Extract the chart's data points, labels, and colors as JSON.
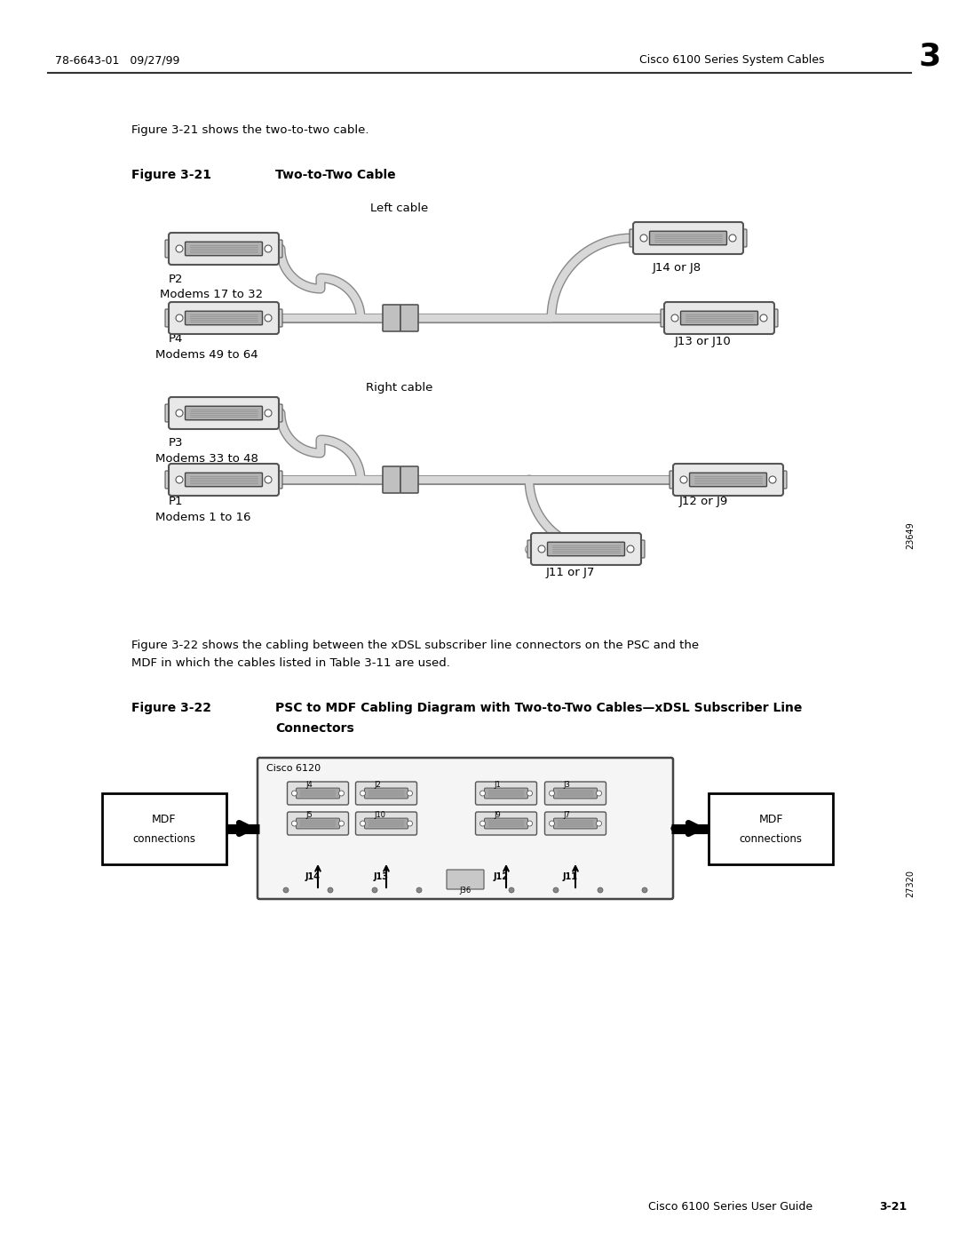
{
  "bg_color": "#ffffff",
  "text_color": "#000000",
  "header_left": "78-6643-01   09/27/99",
  "header_right": "Cisco 6100 Series System Cables",
  "header_right_num": "3",
  "footer_right": "Cisco 6100 Series User Guide",
  "footer_right_num": "3-21",
  "intro_text": "Figure 3-21 shows the two-to-two cable.",
  "fig21_label": "Figure 3-21",
  "fig21_title": "Two-to-Two Cable",
  "fig22_label": "Figure 3-22",
  "fig22_body_line1": "Figure 3-22 shows the cabling between the xDSL subscriber line connectors on the PSC and the",
  "fig22_body_line2": "MDF in which the cables listed in Table 3-11 are used.",
  "fig22_title_line1": "PSC to MDF Cabling Diagram with Two-to-Two Cables—xDSL Subscriber Line",
  "fig22_title_line2": "Connectors",
  "cisco6120_label": "Cisco 6120",
  "img_num1": "23649",
  "img_num2": "27320"
}
